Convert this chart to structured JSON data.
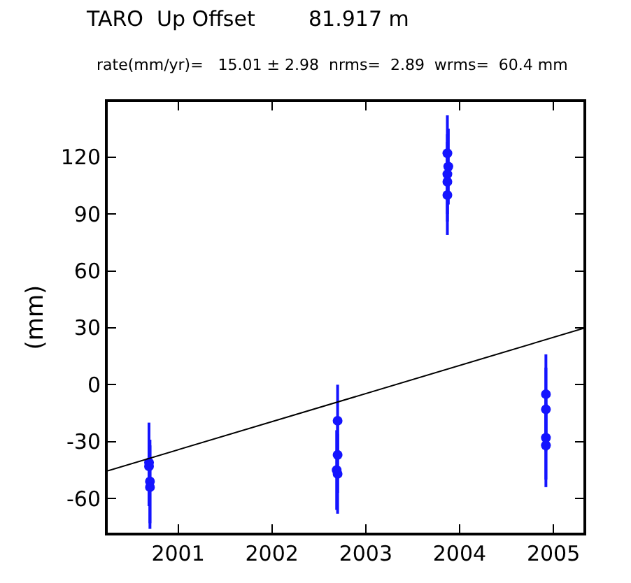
{
  "chart_data": {
    "type": "scatter",
    "title": "TARO  Up Offset        81.917 m",
    "subtitle": "rate(mm/yr)=   15.01 ± 2.98  nrms=  2.89  wrms=  60.4 mm",
    "ylabel": "(mm)",
    "xlim": [
      2000.25,
      2005.32
    ],
    "xticks": [
      2001,
      2002,
      2003,
      2004,
      2005
    ],
    "ylim": [
      -78,
      149
    ],
    "yticks": [
      -60,
      -30,
      0,
      30,
      60,
      90,
      120
    ],
    "series": [
      {
        "marker": "circle",
        "color": "#1414ff",
        "x": [
          2000.69,
          2000.69,
          2000.7,
          2000.7,
          2002.7,
          2002.7,
          2002.69,
          2002.7,
          2003.87,
          2003.88,
          2003.87,
          2003.87,
          2003.87,
          2004.92,
          2004.92,
          2004.92,
          2004.92
        ],
        "values": [
          -41,
          -43,
          -51,
          -54,
          -19,
          -37,
          -45,
          -47,
          122,
          115,
          111,
          107,
          100,
          -5,
          -13,
          -28,
          -32
        ],
        "errors": [
          21,
          21,
          22,
          22,
          19,
          20,
          21,
          21,
          20,
          20,
          21,
          21,
          21,
          21,
          22,
          22,
          22
        ]
      },
      {
        "type": "line",
        "marker": "none",
        "color": "#000000",
        "x": [
          2000.25,
          2005.32
        ],
        "values": [
          -45.4,
          29.7
        ]
      }
    ]
  }
}
